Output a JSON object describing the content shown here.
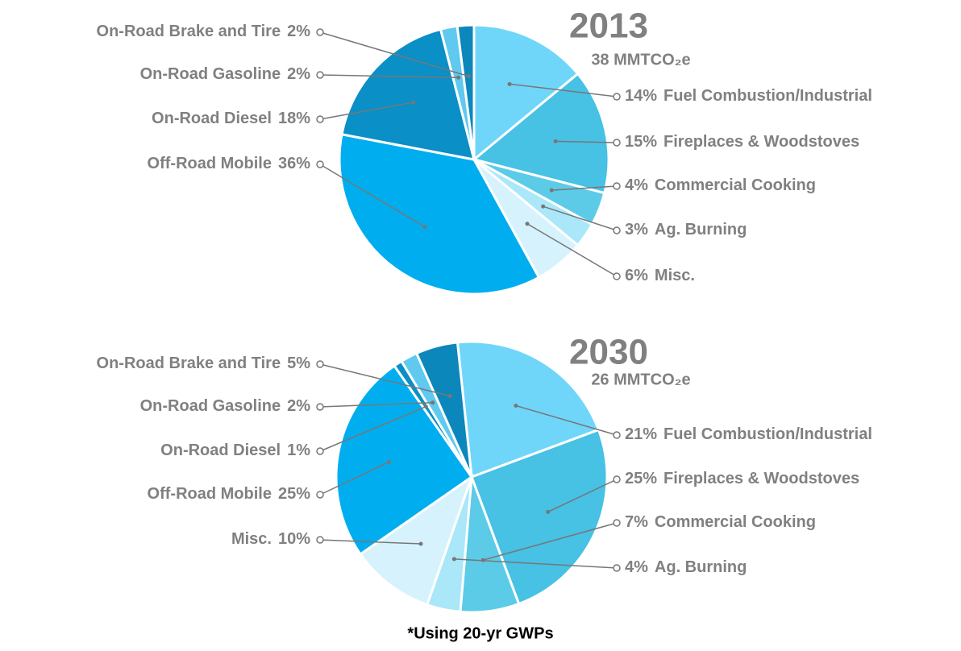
{
  "chart_data": [
    {
      "type": "pie",
      "title": "2013",
      "subtitle": "38 MMTCO₂e",
      "categories": [
        "Fuel Combustion/Industrial",
        "Fireplaces & Woodstoves",
        "Commercial Cooking",
        "Ag. Burning",
        "Misc.",
        "Off-Road Mobile",
        "On-Road Diesel",
        "On-Road Gasoline",
        "On-Road Brake and Tire"
      ],
      "values": [
        14,
        15,
        4,
        3,
        6,
        36,
        18,
        2,
        2
      ],
      "value_labels": [
        "14%",
        "15%",
        "4%",
        "3%",
        "6%",
        "36%",
        "18%",
        "2%",
        "2%"
      ],
      "colors": [
        "#6fd6fa",
        "#47c1e4",
        "#5ccbe8",
        "#a9e7f9",
        "#d6f3fd",
        "#00aeef",
        "#0a8fc6",
        "#5fc9ef",
        "#0c87bb"
      ]
    },
    {
      "type": "pie",
      "title": "2030",
      "subtitle": "26 MMTCO₂e",
      "categories": [
        "Fuel Combustion/Industrial",
        "Fireplaces & Woodstoves",
        "Commercial Cooking",
        "Ag. Burning",
        "Misc.",
        "Off-Road Mobile",
        "On-Road Diesel",
        "On-Road Gasoline",
        "On-Road Brake and Tire"
      ],
      "values": [
        21,
        25,
        7,
        4,
        10,
        25,
        1,
        2,
        5
      ],
      "value_labels": [
        "21%",
        "25%",
        "7%",
        "4%",
        "10%",
        "25%",
        "1%",
        "2%",
        "5%"
      ],
      "colors": [
        "#6fd6fa",
        "#47c1e4",
        "#5ccbe8",
        "#a9e7f9",
        "#d6f3fd",
        "#00aeef",
        "#0a8fc6",
        "#5fc9ef",
        "#0c87bb"
      ]
    }
  ],
  "footnote": "*Using 20-yr GWPs"
}
